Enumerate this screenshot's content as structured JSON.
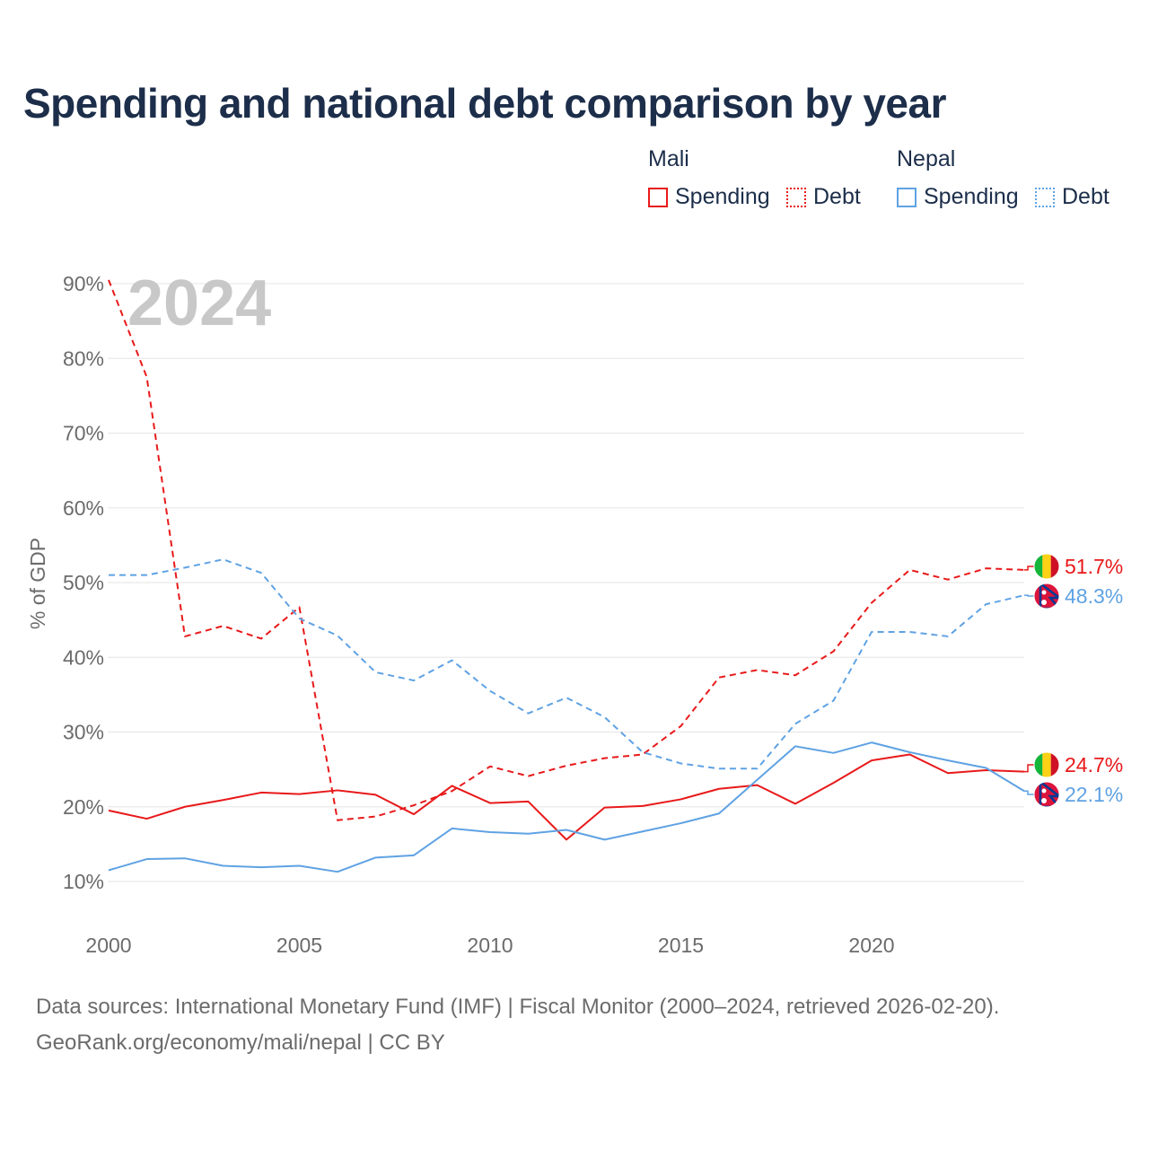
{
  "title": "Spending and national debt comparison by year",
  "legend": {
    "groups": [
      {
        "name": "Mali",
        "color": "#e8191a",
        "items": [
          {
            "label": "Spending",
            "style": "solid"
          },
          {
            "label": "Debt",
            "style": "dotted"
          }
        ]
      },
      {
        "name": "Nepal",
        "color": "#5fa2e3",
        "items": [
          {
            "label": "Spending",
            "style": "solid"
          },
          {
            "label": "Debt",
            "style": "dotted"
          }
        ]
      }
    ]
  },
  "year_label": "2024",
  "source_line1": "Data sources: International Monetary Fund (IMF) | Fiscal Monitor (2000–2024, retrieved 2026-02-20).",
  "source_line2": "GeoRank.org/economy/mali/nepal | CC BY",
  "chart_data": {
    "type": "line",
    "title": "Spending and national debt comparison by year",
    "xlabel": "",
    "ylabel": "% of GDP",
    "xlim": [
      2000,
      2024
    ],
    "ylim": [
      5,
      90
    ],
    "yticks": [
      10,
      20,
      30,
      40,
      50,
      60,
      70,
      80,
      90
    ],
    "ytick_labels": [
      "10%",
      "20%",
      "30%",
      "40%",
      "50%",
      "60%",
      "70%",
      "80%",
      "90%"
    ],
    "xticks": [
      2000,
      2005,
      2010,
      2015,
      2020
    ],
    "xtick_labels": [
      "2000",
      "2005",
      "2010",
      "2015",
      "2020"
    ],
    "grid": true,
    "x": [
      2000,
      2001,
      2002,
      2003,
      2004,
      2005,
      2006,
      2007,
      2008,
      2009,
      2010,
      2011,
      2012,
      2013,
      2014,
      2015,
      2016,
      2017,
      2018,
      2019,
      2020,
      2021,
      2022,
      2023,
      2024
    ],
    "series": [
      {
        "name": "Mali Spending",
        "country": "Mali",
        "metric": "Spending",
        "color": "#e8191a",
        "dash": "solid",
        "values": [
          19.5,
          18.4,
          20.0,
          20.9,
          21.9,
          21.7,
          22.2,
          21.6,
          19.0,
          22.8,
          20.5,
          20.7,
          15.6,
          19.9,
          20.1,
          21.0,
          22.4,
          22.9,
          20.4,
          23.2,
          26.2,
          27.0,
          24.5,
          24.9,
          24.7
        ],
        "end_label": "24.7%"
      },
      {
        "name": "Mali Debt",
        "country": "Mali",
        "metric": "Debt",
        "color": "#e8191a",
        "dash": "dashed",
        "values": [
          90.5,
          77.5,
          42.8,
          44.2,
          42.5,
          46.7,
          18.2,
          18.7,
          20.2,
          22.1,
          25.4,
          24.1,
          25.5,
          26.5,
          27.0,
          30.8,
          37.3,
          38.3,
          37.6,
          40.8,
          47.3,
          51.7,
          50.4,
          51.9,
          51.7
        ],
        "end_label": "51.7%"
      },
      {
        "name": "Nepal Spending",
        "country": "Nepal",
        "metric": "Spending",
        "color": "#5fa2e3",
        "dash": "solid",
        "values": [
          11.5,
          13.0,
          13.1,
          12.1,
          11.9,
          12.1,
          11.3,
          13.2,
          13.5,
          17.1,
          16.6,
          16.4,
          16.9,
          15.6,
          16.7,
          17.8,
          19.1,
          23.6,
          28.1,
          27.2,
          28.6,
          27.3,
          26.2,
          25.2,
          22.1
        ],
        "end_label": "22.1%"
      },
      {
        "name": "Nepal Debt",
        "country": "Nepal",
        "metric": "Debt",
        "color": "#5fa2e3",
        "dash": "dashed",
        "values": [
          51.0,
          51.0,
          52.0,
          53.1,
          51.3,
          45.2,
          42.9,
          38.0,
          36.9,
          39.6,
          35.5,
          32.5,
          34.6,
          32.0,
          27.3,
          25.8,
          25.1,
          25.1,
          31.1,
          34.2,
          43.4,
          43.4,
          42.8,
          47.1,
          48.3
        ],
        "end_label": "48.3%"
      }
    ]
  }
}
